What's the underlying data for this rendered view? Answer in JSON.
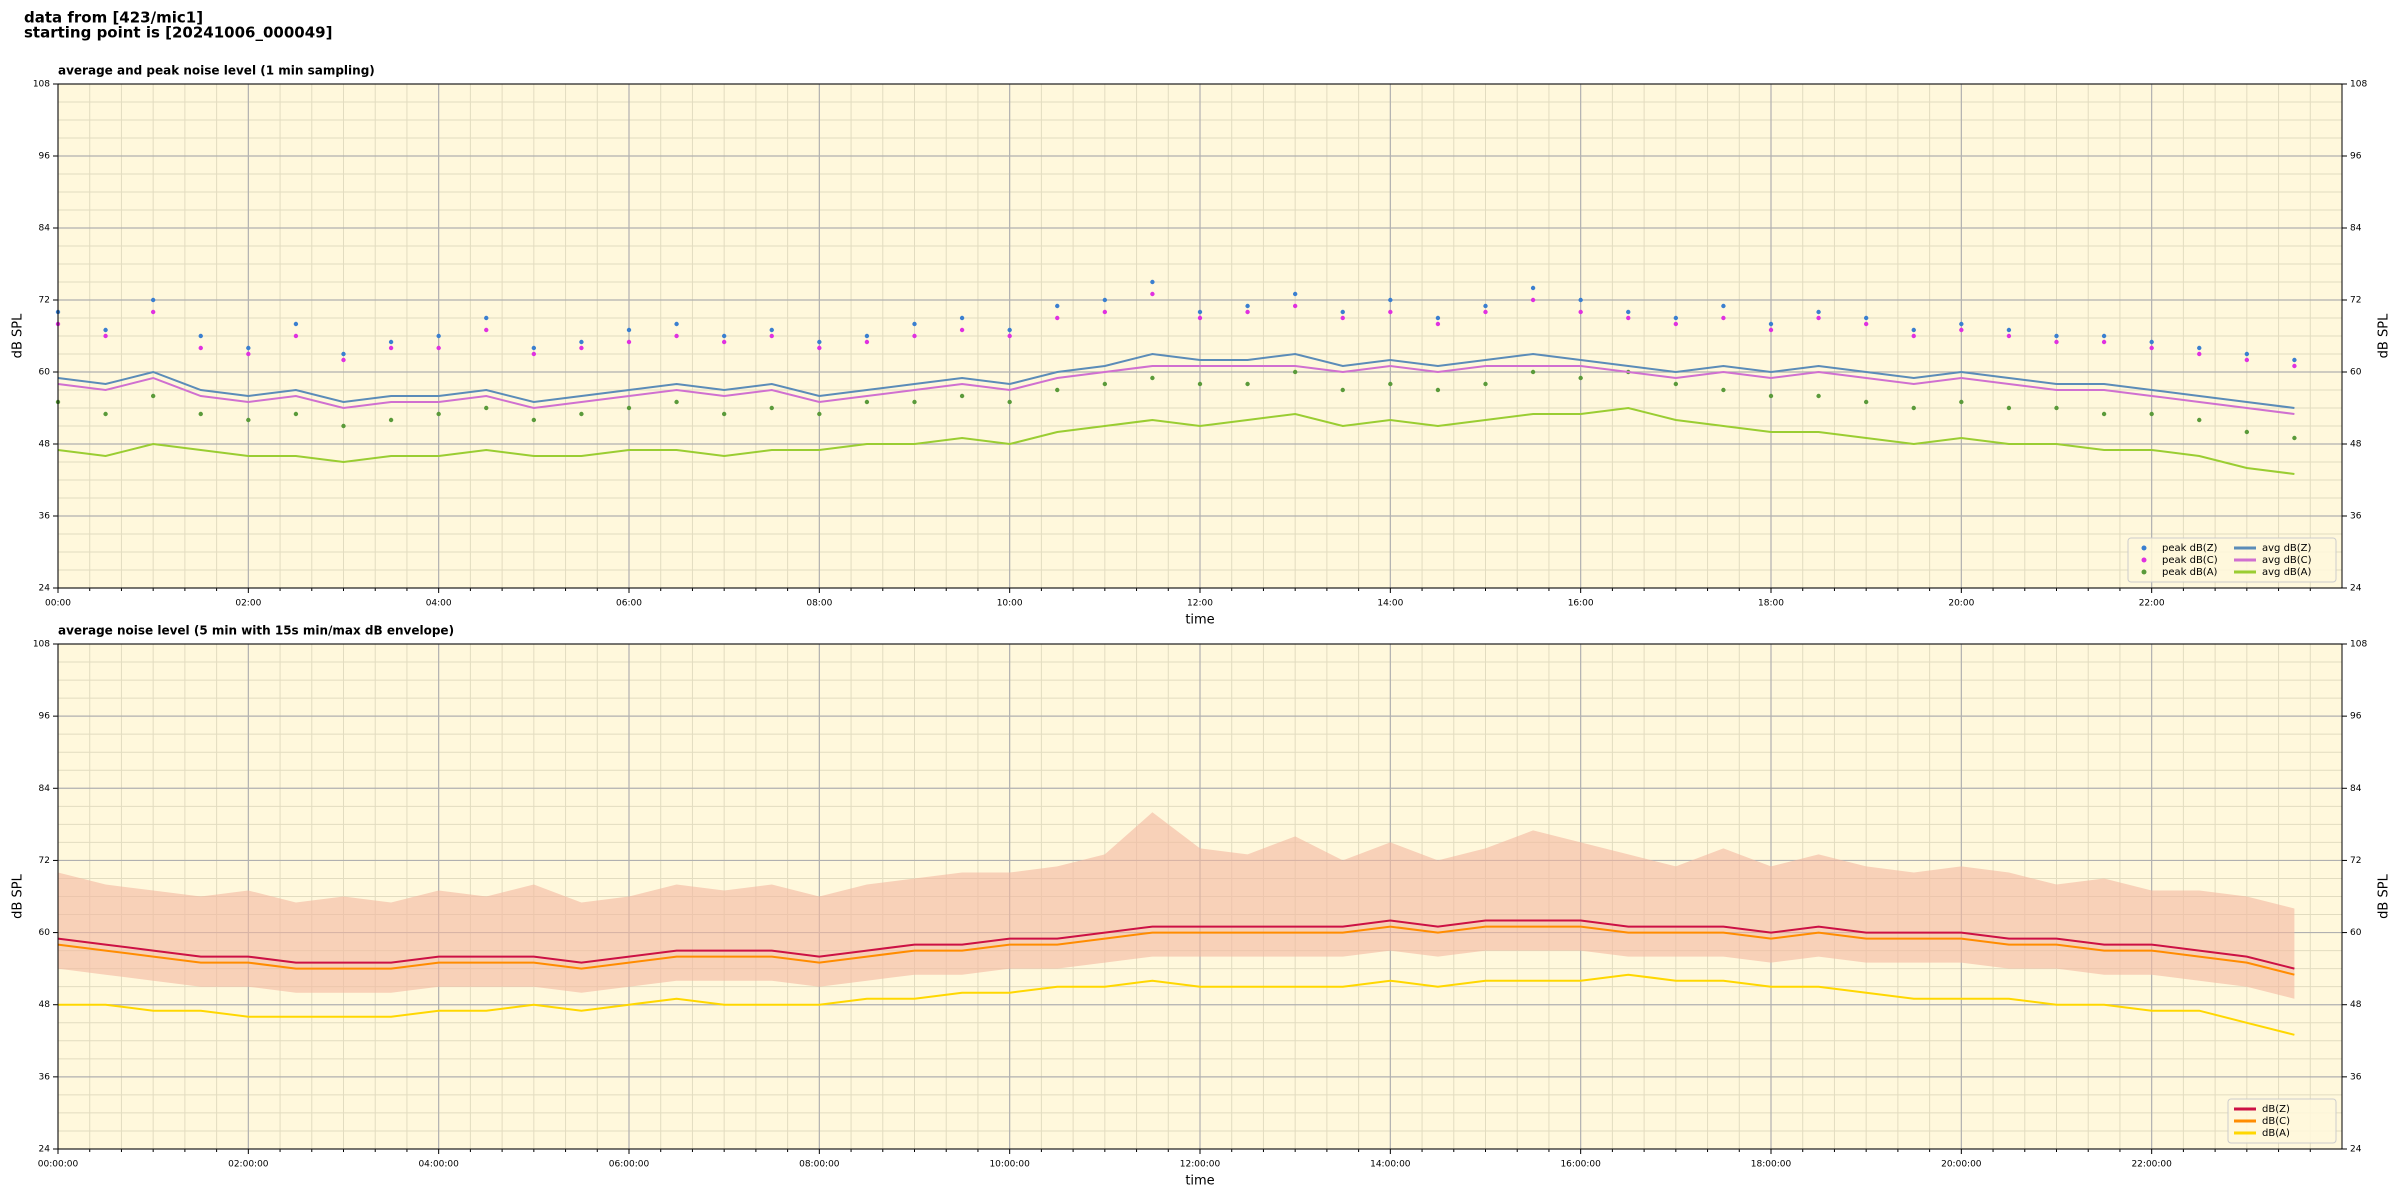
{
  "header": {
    "line1": "data from [423/mic1]",
    "line2": "starting point is [20241006_000049]"
  },
  "chart_data": [
    {
      "type": "line",
      "title": "average and peak noise level (1 min sampling)",
      "xlabel": "time",
      "ylabel": "dB SPL",
      "x": [
        0,
        0.5,
        1,
        1.5,
        2,
        2.5,
        3,
        3.5,
        4,
        4.5,
        5,
        5.5,
        6,
        6.5,
        7,
        7.5,
        8,
        8.5,
        9,
        9.5,
        10,
        10.5,
        11,
        11.5,
        12,
        12.5,
        13,
        13.5,
        14,
        14.5,
        15,
        15.5,
        16,
        16.5,
        17,
        17.5,
        18,
        18.5,
        19,
        19.5,
        20,
        20.5,
        21,
        21.5,
        22,
        22.5,
        23,
        23.5
      ],
      "xlim": [
        0,
        24
      ],
      "xticks": [
        {
          "value": 0,
          "label": "00:00"
        },
        {
          "value": 2,
          "label": "02:00"
        },
        {
          "value": 4,
          "label": "04:00"
        },
        {
          "value": 6,
          "label": "06:00"
        },
        {
          "value": 8,
          "label": "08:00"
        },
        {
          "value": 10,
          "label": "10:00"
        },
        {
          "value": 12,
          "label": "12:00"
        },
        {
          "value": 14,
          "label": "14:00"
        },
        {
          "value": 16,
          "label": "16:00"
        },
        {
          "value": 18,
          "label": "18:00"
        },
        {
          "value": 20,
          "label": "20:00"
        },
        {
          "value": 22,
          "label": "22:00"
        }
      ],
      "ylim": [
        24,
        108
      ],
      "yticks": [
        24,
        36,
        48,
        60,
        72,
        84,
        96,
        108
      ],
      "grid": true,
      "minor_grid": true,
      "background": "#fff8dc",
      "legend": "lower right",
      "legend_columns": 2,
      "series": [
        {
          "name": "peak dB(Z)",
          "kind": "scatter",
          "color": "#3a7fd0",
          "values": [
            70,
            67,
            72,
            66,
            64,
            68,
            63,
            65,
            66,
            69,
            64,
            65,
            67,
            68,
            66,
            67,
            65,
            66,
            68,
            69,
            67,
            71,
            72,
            75,
            70,
            71,
            73,
            70,
            72,
            69,
            71,
            74,
            72,
            70,
            69,
            71,
            68,
            70,
            69,
            67,
            68,
            67,
            66,
            66,
            65,
            64,
            63,
            62
          ]
        },
        {
          "name": "peak dB(C)",
          "kind": "scatter",
          "color": "#e030e0",
          "values": [
            68,
            66,
            70,
            64,
            63,
            66,
            62,
            64,
            64,
            67,
            63,
            64,
            65,
            66,
            65,
            66,
            64,
            65,
            66,
            67,
            66,
            69,
            70,
            73,
            69,
            70,
            71,
            69,
            70,
            68,
            70,
            72,
            70,
            69,
            68,
            69,
            67,
            69,
            68,
            66,
            67,
            66,
            65,
            65,
            64,
            63,
            62,
            61
          ]
        },
        {
          "name": "peak dB(A)",
          "kind": "scatter",
          "color": "#5a9a3a",
          "values": [
            55,
            53,
            56,
            53,
            52,
            53,
            51,
            52,
            53,
            54,
            52,
            53,
            54,
            55,
            53,
            54,
            53,
            55,
            55,
            56,
            55,
            57,
            58,
            59,
            58,
            58,
            60,
            57,
            58,
            57,
            58,
            60,
            59,
            60,
            58,
            57,
            56,
            56,
            55,
            54,
            55,
            54,
            54,
            53,
            53,
            52,
            50,
            49
          ]
        },
        {
          "name": "avg dB(Z)",
          "kind": "line",
          "color": "#5b8cb8",
          "values": [
            59,
            58,
            60,
            57,
            56,
            57,
            55,
            56,
            56,
            57,
            55,
            56,
            57,
            58,
            57,
            58,
            56,
            57,
            58,
            59,
            58,
            60,
            61,
            63,
            62,
            62,
            63,
            61,
            62,
            61,
            62,
            63,
            62,
            61,
            60,
            61,
            60,
            61,
            60,
            59,
            60,
            59,
            58,
            58,
            57,
            56,
            55,
            54
          ]
        },
        {
          "name": "avg dB(C)",
          "kind": "line",
          "color": "#d070d0",
          "values": [
            58,
            57,
            59,
            56,
            55,
            56,
            54,
            55,
            55,
            56,
            54,
            55,
            56,
            57,
            56,
            57,
            55,
            56,
            57,
            58,
            57,
            59,
            60,
            61,
            61,
            61,
            61,
            60,
            61,
            60,
            61,
            61,
            61,
            60,
            59,
            60,
            59,
            60,
            59,
            58,
            59,
            58,
            57,
            57,
            56,
            55,
            54,
            53
          ]
        },
        {
          "name": "avg dB(A)",
          "kind": "line",
          "color": "#9acd32",
          "values": [
            47,
            46,
            48,
            47,
            46,
            46,
            45,
            46,
            46,
            47,
            46,
            46,
            47,
            47,
            46,
            47,
            47,
            48,
            48,
            49,
            48,
            50,
            51,
            52,
            51,
            52,
            53,
            51,
            52,
            51,
            52,
            53,
            53,
            54,
            52,
            51,
            50,
            50,
            49,
            48,
            49,
            48,
            48,
            47,
            47,
            46,
            44,
            43
          ]
        }
      ]
    },
    {
      "type": "line",
      "title": "average noise level (5 min with 15s min/max dB envelope)",
      "xlabel": "time",
      "ylabel": "dB SPL",
      "x": [
        0,
        0.5,
        1,
        1.5,
        2,
        2.5,
        3,
        3.5,
        4,
        4.5,
        5,
        5.5,
        6,
        6.5,
        7,
        7.5,
        8,
        8.5,
        9,
        9.5,
        10,
        10.5,
        11,
        11.5,
        12,
        12.5,
        13,
        13.5,
        14,
        14.5,
        15,
        15.5,
        16,
        16.5,
        17,
        17.5,
        18,
        18.5,
        19,
        19.5,
        20,
        20.5,
        21,
        21.5,
        22,
        22.5,
        23,
        23.5
      ],
      "xlim": [
        0,
        24
      ],
      "xticks": [
        {
          "value": 0,
          "label": "00:00:00"
        },
        {
          "value": 2,
          "label": "02:00:00"
        },
        {
          "value": 4,
          "label": "04:00:00"
        },
        {
          "value": 6,
          "label": "06:00:00"
        },
        {
          "value": 8,
          "label": "08:00:00"
        },
        {
          "value": 10,
          "label": "10:00:00"
        },
        {
          "value": 12,
          "label": "12:00:00"
        },
        {
          "value": 14,
          "label": "14:00:00"
        },
        {
          "value": 16,
          "label": "16:00:00"
        },
        {
          "value": 18,
          "label": "18:00:00"
        },
        {
          "value": 20,
          "label": "20:00:00"
        },
        {
          "value": 22,
          "label": "22:00:00"
        }
      ],
      "ylim": [
        24,
        108
      ],
      "yticks": [
        24,
        36,
        48,
        60,
        72,
        84,
        96,
        108
      ],
      "grid": true,
      "minor_grid": true,
      "background": "#fff8dc",
      "legend": "lower right",
      "legend_columns": 1,
      "envelope": {
        "color": "#f4b8a0",
        "lower": [
          54,
          53,
          52,
          51,
          51,
          50,
          50,
          50,
          51,
          51,
          51,
          50,
          51,
          52,
          52,
          52,
          51,
          52,
          53,
          53,
          54,
          54,
          55,
          56,
          56,
          56,
          56,
          56,
          57,
          56,
          57,
          57,
          57,
          56,
          56,
          56,
          55,
          56,
          55,
          55,
          55,
          54,
          54,
          53,
          53,
          52,
          51,
          49
        ],
        "upper": [
          70,
          68,
          67,
          66,
          67,
          65,
          66,
          65,
          67,
          66,
          68,
          65,
          66,
          68,
          67,
          68,
          66,
          68,
          69,
          70,
          70,
          71,
          73,
          80,
          74,
          73,
          76,
          72,
          75,
          72,
          74,
          77,
          75,
          73,
          71,
          74,
          71,
          73,
          71,
          70,
          71,
          70,
          68,
          69,
          67,
          67,
          66,
          64
        ]
      },
      "series": [
        {
          "name": "dB(Z)",
          "kind": "line",
          "color": "#cc1144",
          "values": [
            59,
            58,
            57,
            56,
            56,
            55,
            55,
            55,
            56,
            56,
            56,
            55,
            56,
            57,
            57,
            57,
            56,
            57,
            58,
            58,
            59,
            59,
            60,
            61,
            61,
            61,
            61,
            61,
            62,
            61,
            62,
            62,
            62,
            61,
            61,
            61,
            60,
            61,
            60,
            60,
            60,
            59,
            59,
            58,
            58,
            57,
            56,
            54
          ]
        },
        {
          "name": "dB(C)",
          "kind": "line",
          "color": "#ff8c00",
          "values": [
            58,
            57,
            56,
            55,
            55,
            54,
            54,
            54,
            55,
            55,
            55,
            54,
            55,
            56,
            56,
            56,
            55,
            56,
            57,
            57,
            58,
            58,
            59,
            60,
            60,
            60,
            60,
            60,
            61,
            60,
            61,
            61,
            61,
            60,
            60,
            60,
            59,
            60,
            59,
            59,
            59,
            58,
            58,
            57,
            57,
            56,
            55,
            53
          ]
        },
        {
          "name": "dB(A)",
          "kind": "line",
          "color": "#ffd700",
          "values": [
            48,
            48,
            47,
            47,
            46,
            46,
            46,
            46,
            47,
            47,
            48,
            47,
            48,
            49,
            48,
            48,
            48,
            49,
            49,
            50,
            50,
            51,
            51,
            52,
            51,
            51,
            51,
            51,
            52,
            51,
            52,
            52,
            52,
            53,
            52,
            52,
            51,
            51,
            50,
            49,
            49,
            49,
            48,
            48,
            47,
            47,
            45,
            43
          ]
        }
      ]
    }
  ]
}
